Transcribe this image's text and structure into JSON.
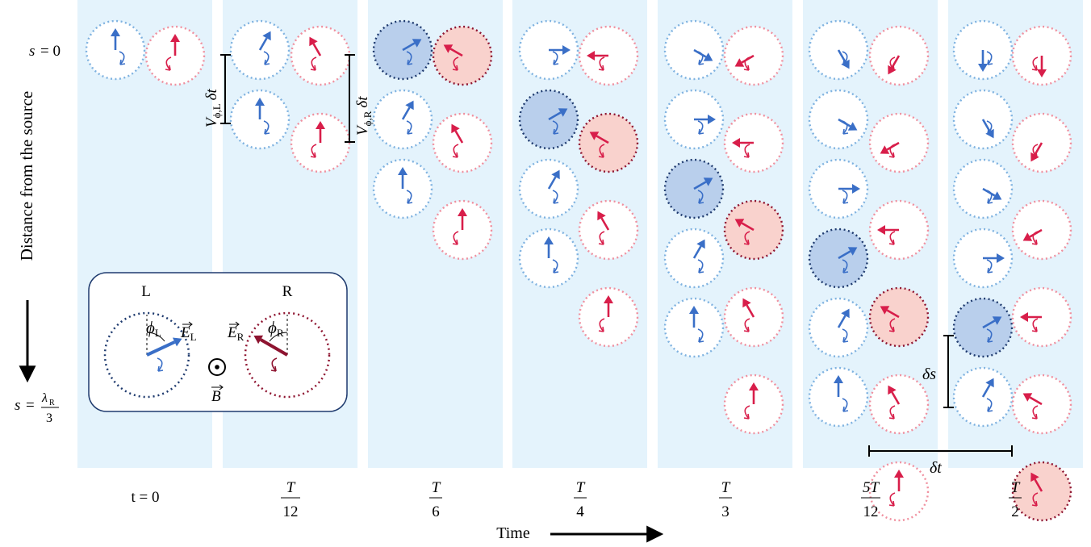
{
  "labels": {
    "s_zero_var": "s",
    "s_zero_eq": "= 0",
    "s_end_var": "s",
    "s_end_eq": "=",
    "s_end_num": "λ",
    "s_end_num_sub": "R",
    "s_end_den": "3",
    "y_axis": "Distance from the source",
    "x_axis": "Time",
    "t_zero": "t = 0",
    "inset_left": "L",
    "inset_right": "R",
    "phi_L": "ϕ",
    "phi_L_sub": "L",
    "phi_R": "ϕ",
    "phi_R_sub": "R",
    "E_L": "E",
    "E_L_sub": "L",
    "E_R": "E",
    "E_R_sub": "R",
    "B": "B",
    "V_L": "V",
    "V_L_sub": "ϕ,L",
    "V_R": "V",
    "V_R_sub": "ϕ,R",
    "delta_t": "δt",
    "delta_s": "δs"
  },
  "time_ticks": [
    {
      "num": "",
      "den": ""
    },
    {
      "num": "T",
      "den": "12"
    },
    {
      "num": "T",
      "den": "6"
    },
    {
      "num": "T",
      "den": "4"
    },
    {
      "num": "T",
      "den": "3"
    },
    {
      "num": "5T",
      "den": "12"
    },
    {
      "num": "T",
      "den": "2"
    }
  ],
  "colors": {
    "panel": "#e4f3fc",
    "blue": "#3a6fc7",
    "blue_light": "#7fb2e0",
    "blue_dark": "#1e3a6e",
    "red": "#d81e4a",
    "red_light": "#f0909f",
    "red_dark": "#8e1430",
    "blue_fill": "#b9cfec",
    "red_fill": "#f9d2cd"
  },
  "panels": [
    {
      "circles": [
        {
          "pol": "L",
          "row": 0,
          "angle": 0
        },
        {
          "pol": "R",
          "row": 0,
          "angle": 0
        }
      ]
    },
    {
      "circles": [
        {
          "pol": "L",
          "row": 0,
          "angle": 30
        },
        {
          "pol": "L",
          "row": 1,
          "angle": 0
        },
        {
          "pol": "R",
          "row": 0,
          "angle": -30
        },
        {
          "pol": "R",
          "row": 1,
          "angle": 0
        }
      ]
    },
    {
      "circles": [
        {
          "pol": "L",
          "row": 0,
          "angle": 60,
          "highlight": true
        },
        {
          "pol": "L",
          "row": 1,
          "angle": 30
        },
        {
          "pol": "L",
          "row": 2,
          "angle": 0
        },
        {
          "pol": "R",
          "row": 0,
          "angle": -60,
          "highlight": true
        },
        {
          "pol": "R",
          "row": 1,
          "angle": -30
        },
        {
          "pol": "R",
          "row": 2,
          "angle": 0
        }
      ]
    },
    {
      "circles": [
        {
          "pol": "L",
          "row": 0,
          "angle": 90
        },
        {
          "pol": "L",
          "row": 1,
          "angle": 60,
          "highlight": true
        },
        {
          "pol": "L",
          "row": 2,
          "angle": 30
        },
        {
          "pol": "L",
          "row": 3,
          "angle": 0
        },
        {
          "pol": "R",
          "row": 0,
          "angle": -90
        },
        {
          "pol": "R",
          "row": 1,
          "angle": -60,
          "highlight": true
        },
        {
          "pol": "R",
          "row": 2,
          "angle": -30
        },
        {
          "pol": "R",
          "row": 3,
          "angle": 0
        }
      ]
    },
    {
      "circles": [
        {
          "pol": "L",
          "row": 0,
          "angle": 120
        },
        {
          "pol": "L",
          "row": 1,
          "angle": 90
        },
        {
          "pol": "L",
          "row": 2,
          "angle": 60,
          "highlight": true
        },
        {
          "pol": "L",
          "row": 3,
          "angle": 30
        },
        {
          "pol": "L",
          "row": 4,
          "angle": 0
        },
        {
          "pol": "R",
          "row": 0,
          "angle": -120
        },
        {
          "pol": "R",
          "row": 1,
          "angle": -90
        },
        {
          "pol": "R",
          "row": 2,
          "angle": -60,
          "highlight": true
        },
        {
          "pol": "R",
          "row": 3,
          "angle": -30
        },
        {
          "pol": "R",
          "row": 4,
          "angle": 0
        }
      ]
    },
    {
      "circles": [
        {
          "pol": "L",
          "row": 0,
          "angle": 150
        },
        {
          "pol": "L",
          "row": 1,
          "angle": 120
        },
        {
          "pol": "L",
          "row": 2,
          "angle": 90
        },
        {
          "pol": "L",
          "row": 3,
          "angle": 60,
          "highlight": true
        },
        {
          "pol": "L",
          "row": 4,
          "angle": 30
        },
        {
          "pol": "L",
          "row": 5,
          "angle": 0
        },
        {
          "pol": "R",
          "row": 0,
          "angle": -150
        },
        {
          "pol": "R",
          "row": 1,
          "angle": -120
        },
        {
          "pol": "R",
          "row": 2,
          "angle": -90
        },
        {
          "pol": "R",
          "row": 3,
          "angle": -60,
          "highlight": true
        },
        {
          "pol": "R",
          "row": 4,
          "angle": -30
        },
        {
          "pol": "R",
          "row": 5,
          "angle": 0
        }
      ]
    },
    {
      "circles": [
        {
          "pol": "L",
          "row": 0,
          "angle": 180
        },
        {
          "pol": "L",
          "row": 1,
          "angle": 150
        },
        {
          "pol": "L",
          "row": 2,
          "angle": 120
        },
        {
          "pol": "L",
          "row": 3,
          "angle": 90
        },
        {
          "pol": "L",
          "row": 4,
          "angle": 60,
          "highlight": true
        },
        {
          "pol": "L",
          "row": 5,
          "angle": 30
        },
        {
          "pol": "R",
          "row": 0,
          "angle": 180
        },
        {
          "pol": "R",
          "row": 1,
          "angle": -150
        },
        {
          "pol": "R",
          "row": 2,
          "angle": -120
        },
        {
          "pol": "R",
          "row": 3,
          "angle": -90
        },
        {
          "pol": "R",
          "row": 4,
          "angle": -60
        },
        {
          "pol": "R",
          "row": 5,
          "angle": -30,
          "highlight": true
        }
      ]
    }
  ]
}
